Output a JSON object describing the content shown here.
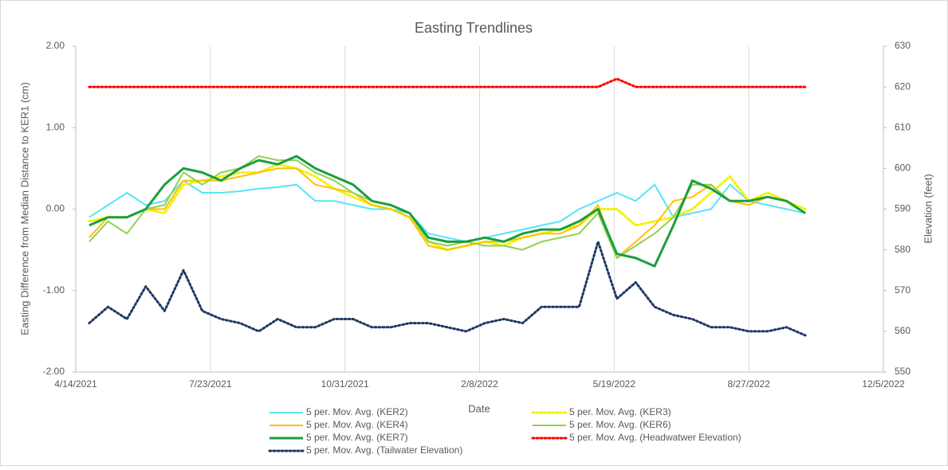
{
  "chart_data": {
    "type": "line",
    "title": "Easting Trendlines",
    "xlabel": "Date",
    "ylabel": "Easting Difference  from Median Distance to KER1 (cm)",
    "y2label": "Elevation (feet)",
    "x": [
      "2021-04-24",
      "2021-05-08",
      "2021-05-22",
      "2021-06-05",
      "2021-06-19",
      "2021-07-03",
      "2021-07-17",
      "2021-07-31",
      "2021-08-14",
      "2021-08-28",
      "2021-09-11",
      "2021-09-25",
      "2021-10-09",
      "2021-10-23",
      "2021-11-06",
      "2021-11-20",
      "2021-12-04",
      "2021-12-18",
      "2022-01-01",
      "2022-01-15",
      "2022-01-29",
      "2022-02-12",
      "2022-02-26",
      "2022-03-12",
      "2022-03-26",
      "2022-04-09",
      "2022-04-23",
      "2022-05-07",
      "2022-05-21",
      "2022-06-04",
      "2022-06-18",
      "2022-07-02",
      "2022-07-16",
      "2022-07-30",
      "2022-08-13",
      "2022-08-27",
      "2022-09-10",
      "2022-09-24",
      "2022-10-08"
    ],
    "xlim": [
      "2021-04-14",
      "2022-12-05"
    ],
    "xticks": [
      {
        "value": "2021-04-14",
        "label": "4/14/2021"
      },
      {
        "value": "2021-07-23",
        "label": "7/23/2021"
      },
      {
        "value": "2021-10-31",
        "label": "10/31/2021"
      },
      {
        "value": "2022-02-08",
        "label": "2/8/2022"
      },
      {
        "value": "2022-05-19",
        "label": "5/19/2022"
      },
      {
        "value": "2022-08-27",
        "label": "8/27/2022"
      },
      {
        "value": "2022-12-05",
        "label": "12/5/2022"
      }
    ],
    "ylim": [
      -2,
      2
    ],
    "yticks": [
      {
        "value": -2,
        "label": "-2.00"
      },
      {
        "value": -1,
        "label": "-1.00"
      },
      {
        "value": 0,
        "label": "0.00"
      },
      {
        "value": 1,
        "label": "1.00"
      },
      {
        "value": 2,
        "label": "2.00"
      }
    ],
    "y2lim": [
      550,
      630
    ],
    "y2ticks": [
      550,
      560,
      570,
      580,
      590,
      600,
      610,
      620,
      630
    ],
    "grid": true,
    "series": [
      {
        "name": "5 per. Mov. Avg. (KER2)",
        "color": "#55e6f2",
        "dash": "solid",
        "values": [
          -0.1,
          0.05,
          0.2,
          0.05,
          0.1,
          0.35,
          0.2,
          0.2,
          0.22,
          0.25,
          0.27,
          0.3,
          0.1,
          0.1,
          0.05,
          0.0,
          0.0,
          -0.05,
          -0.3,
          -0.35,
          -0.4,
          -0.35,
          -0.3,
          -0.25,
          -0.2,
          -0.15,
          0.0,
          0.1,
          0.2,
          0.1,
          0.3,
          -0.1,
          -0.05,
          0.0,
          0.3,
          0.1,
          0.05,
          0.0,
          -0.05
        ]
      },
      {
        "name": "5 per. Mov. Avg. (KER3)",
        "color": "#f2f200",
        "dash": "dotted",
        "values": [
          -0.15,
          -0.1,
          -0.1,
          0.0,
          -0.05,
          0.3,
          0.35,
          0.4,
          0.45,
          0.45,
          0.55,
          0.5,
          0.4,
          0.25,
          0.15,
          0.05,
          0.0,
          -0.1,
          -0.4,
          -0.5,
          -0.45,
          -0.4,
          -0.45,
          -0.35,
          -0.3,
          -0.25,
          -0.2,
          0.0,
          0.0,
          -0.2,
          -0.15,
          -0.1,
          0.0,
          0.2,
          0.4,
          0.1,
          0.2,
          0.1,
          0.0
        ]
      },
      {
        "name": "5 per. Mov. Avg. (KER4)",
        "color": "#ffc000",
        "dash": "solid",
        "values": [
          -0.35,
          -0.1,
          -0.1,
          0.0,
          0.0,
          0.35,
          0.35,
          0.35,
          0.4,
          0.45,
          0.5,
          0.5,
          0.3,
          0.25,
          0.2,
          0.05,
          0.0,
          -0.1,
          -0.45,
          -0.5,
          -0.45,
          -0.4,
          -0.4,
          -0.35,
          -0.3,
          -0.3,
          -0.2,
          0.05,
          -0.6,
          -0.4,
          -0.2,
          0.1,
          0.15,
          0.3,
          0.1,
          0.05,
          0.15,
          0.1,
          -0.05
        ]
      },
      {
        "name": "5 per. Mov. Avg. (KER6)",
        "color": "#92d050",
        "dash": "solid",
        "values": [
          -0.4,
          -0.15,
          -0.3,
          0.0,
          0.05,
          0.45,
          0.3,
          0.45,
          0.5,
          0.65,
          0.6,
          0.6,
          0.45,
          0.35,
          0.2,
          0.1,
          0.05,
          -0.05,
          -0.4,
          -0.45,
          -0.4,
          -0.45,
          -0.45,
          -0.5,
          -0.4,
          -0.35,
          -0.3,
          -0.05,
          -0.6,
          -0.45,
          -0.3,
          -0.1,
          0.3,
          0.3,
          0.1,
          0.1,
          0.15,
          0.1,
          -0.05
        ]
      },
      {
        "name": "5 per. Mov. Avg. (KER7)",
        "color": "#1a9e3f",
        "dash": "solid",
        "values": [
          -0.2,
          -0.1,
          -0.1,
          0.0,
          0.3,
          0.5,
          0.45,
          0.35,
          0.5,
          0.6,
          0.55,
          0.65,
          0.5,
          0.4,
          0.3,
          0.1,
          0.05,
          -0.05,
          -0.35,
          -0.4,
          -0.4,
          -0.35,
          -0.4,
          -0.3,
          -0.25,
          -0.25,
          -0.15,
          0.0,
          -0.55,
          -0.6,
          -0.7,
          -0.2,
          0.35,
          0.25,
          0.1,
          0.1,
          0.15,
          0.1,
          -0.05
        ]
      },
      {
        "name": "5 per. Mov. Avg. (Headwatwer Elevation)",
        "color": "#ff0000",
        "dash": "dotted",
        "axis": "y2",
        "values": [
          620,
          620,
          620,
          620,
          620,
          620,
          620,
          620,
          620,
          620,
          620,
          620,
          620,
          620,
          620,
          620,
          620,
          620,
          620,
          620,
          620,
          620,
          620,
          620,
          620,
          620,
          620,
          620,
          622,
          620,
          620,
          620,
          620,
          620,
          620,
          620,
          620,
          620,
          620
        ]
      },
      {
        "name": "5 per. Mov. Avg. (Tailwater Elevation)",
        "color": "#1f3864",
        "dash": "dotted",
        "axis": "y2",
        "values": [
          562,
          566,
          563,
          571,
          565,
          575,
          565,
          563,
          562,
          560,
          563,
          561,
          561,
          563,
          563,
          561,
          561,
          562,
          562,
          561,
          560,
          562,
          563,
          562,
          566,
          566,
          566,
          582,
          568,
          572,
          566,
          564,
          563,
          561,
          561,
          560,
          560,
          561,
          559
        ]
      }
    ]
  }
}
